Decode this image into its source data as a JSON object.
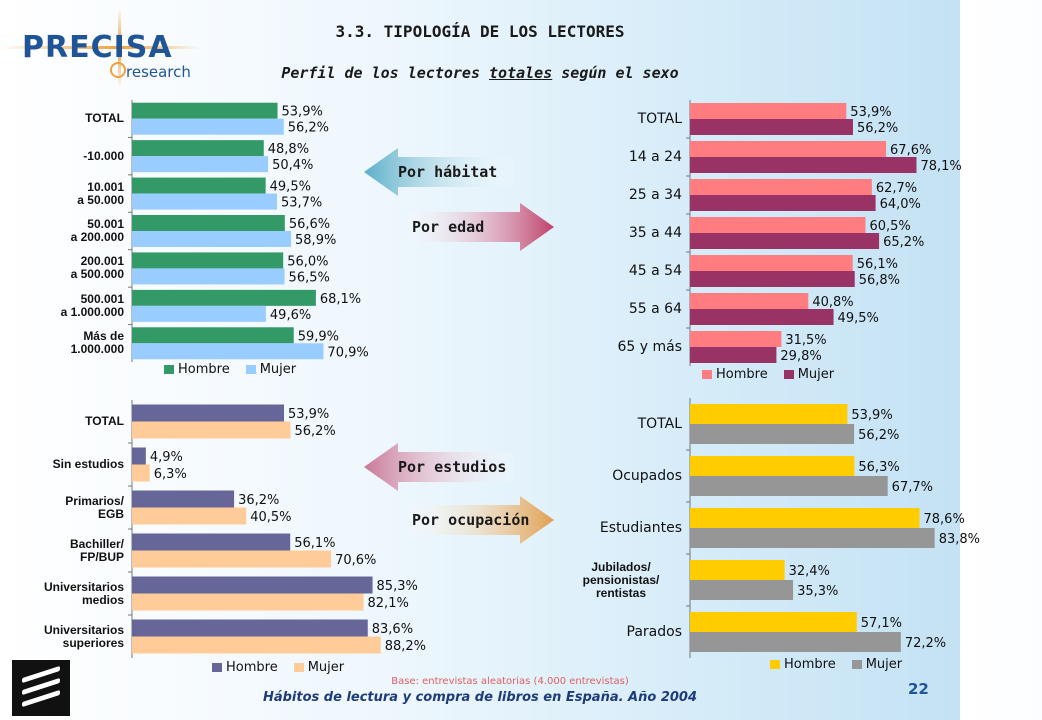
{
  "logo": {
    "name": "PRECISA",
    "sub": "research"
  },
  "title": "3.3. TIPOLOGÍA DE LOS LECTORES",
  "subtitle": {
    "pre": "Perfil de los lectores ",
    "under": "totales",
    "post": " según el sexo"
  },
  "arrows": [
    {
      "label": "Por hábitat",
      "direction": "left",
      "color": "#5aaec8"
    },
    {
      "label": "Por edad",
      "direction": "right",
      "color": "#c0406a"
    },
    {
      "label": "Por estudios",
      "direction": "left",
      "color": "#c87898"
    },
    {
      "label": "Por ocupación",
      "direction": "right",
      "color": "#e0a050"
    }
  ],
  "chart_data": [
    {
      "type": "bar",
      "orientation": "horizontal",
      "title": "",
      "categories": [
        "TOTAL",
        "-10.000",
        "10.001\na 50.000",
        "50.001\na 200.000",
        "200.001\na 500.000",
        "500.001\na 1.000.000",
        "Más de\n1.000.000"
      ],
      "series": [
        {
          "name": "Hombre",
          "color": "#339966",
          "values": [
            53.9,
            48.8,
            49.5,
            56.6,
            56.0,
            68.1,
            59.9
          ]
        },
        {
          "name": "Mujer",
          "color": "#99ccff",
          "values": [
            56.2,
            50.4,
            53.7,
            58.9,
            56.5,
            49.6,
            70.9
          ]
        }
      ],
      "value_labels": [
        [
          "53,9%",
          "48,8%",
          "49,5%",
          "56,6%",
          "56,0%",
          "68,1%",
          "59,9%"
        ],
        [
          "56,2%",
          "50,4%",
          "53,7%",
          "58,9%",
          "56,5%",
          "49,6%",
          "70,9%"
        ]
      ],
      "legend": "bottom",
      "xlim": [
        0,
        100
      ]
    },
    {
      "type": "bar",
      "orientation": "horizontal",
      "title": "",
      "categories": [
        "TOTAL",
        "14 a 24",
        "25 a 34",
        "35 a 44",
        "45 a 54",
        "55 a 64",
        "65 y más"
      ],
      "series": [
        {
          "name": "Hombre",
          "color": "#ff7c80",
          "values": [
            53.9,
            67.6,
            62.7,
            60.5,
            56.1,
            40.8,
            31.5
          ]
        },
        {
          "name": "Mujer",
          "color": "#993366",
          "values": [
            56.2,
            78.1,
            64.0,
            65.2,
            56.8,
            49.5,
            29.8
          ]
        }
      ],
      "value_labels": [
        [
          "53,9%",
          "67,6%",
          "62,7%",
          "60,5%",
          "56,1%",
          "40,8%",
          "31,5%"
        ],
        [
          "56,2%",
          "78,1%",
          "64,0%",
          "65,2%",
          "56,8%",
          "49,5%",
          "29,8%"
        ]
      ],
      "legend": "bottom",
      "xlim": [
        0,
        100
      ]
    },
    {
      "type": "bar",
      "orientation": "horizontal",
      "title": "",
      "categories": [
        "TOTAL",
        "Sin estudios",
        "Primarios/\nEGB",
        "Bachiller/\nFP/BUP",
        "Universitarios\nmedios",
        "Universitarios\nsuperiores"
      ],
      "series": [
        {
          "name": "Hombre",
          "color": "#666699",
          "values": [
            53.9,
            4.9,
            36.2,
            56.1,
            85.3,
            83.6
          ]
        },
        {
          "name": "Mujer",
          "color": "#ffcc99",
          "values": [
            56.2,
            6.3,
            40.5,
            70.6,
            82.1,
            88.2
          ]
        }
      ],
      "value_labels": [
        [
          "53,9%",
          "4,9%",
          "36,2%",
          "56,1%",
          "85,3%",
          "83,6%"
        ],
        [
          "56,2%",
          "6,3%",
          "40,5%",
          "70,6%",
          "82,1%",
          "88,2%"
        ]
      ],
      "legend": "bottom",
      "xlim": [
        0,
        100
      ]
    },
    {
      "type": "bar",
      "orientation": "horizontal",
      "title": "",
      "categories": [
        "TOTAL",
        "Ocupados",
        "Estudiantes",
        "Jubilados/\npensionistas/\nrentistas",
        "Parados"
      ],
      "series": [
        {
          "name": "Hombre",
          "color": "#ffcc00",
          "values": [
            53.9,
            56.3,
            78.6,
            32.4,
            57.1
          ]
        },
        {
          "name": "Mujer",
          "color": "#969696",
          "values": [
            56.2,
            67.7,
            83.8,
            35.3,
            72.2
          ]
        }
      ],
      "value_labels": [
        [
          "53,9%",
          "56,3%",
          "78,6%",
          "32,4%",
          "57,1%"
        ],
        [
          "56,2%",
          "67,7%",
          "83,8%",
          "35,3%",
          "72,2%"
        ]
      ],
      "legend": "bottom",
      "xlim": [
        0,
        100
      ]
    }
  ],
  "footer": {
    "note": "Base: entrevistas aleatorias (4.000 entrevistas)",
    "main": "Hábitos de lectura y compra de libros en España. Año 2004",
    "page": "22"
  }
}
